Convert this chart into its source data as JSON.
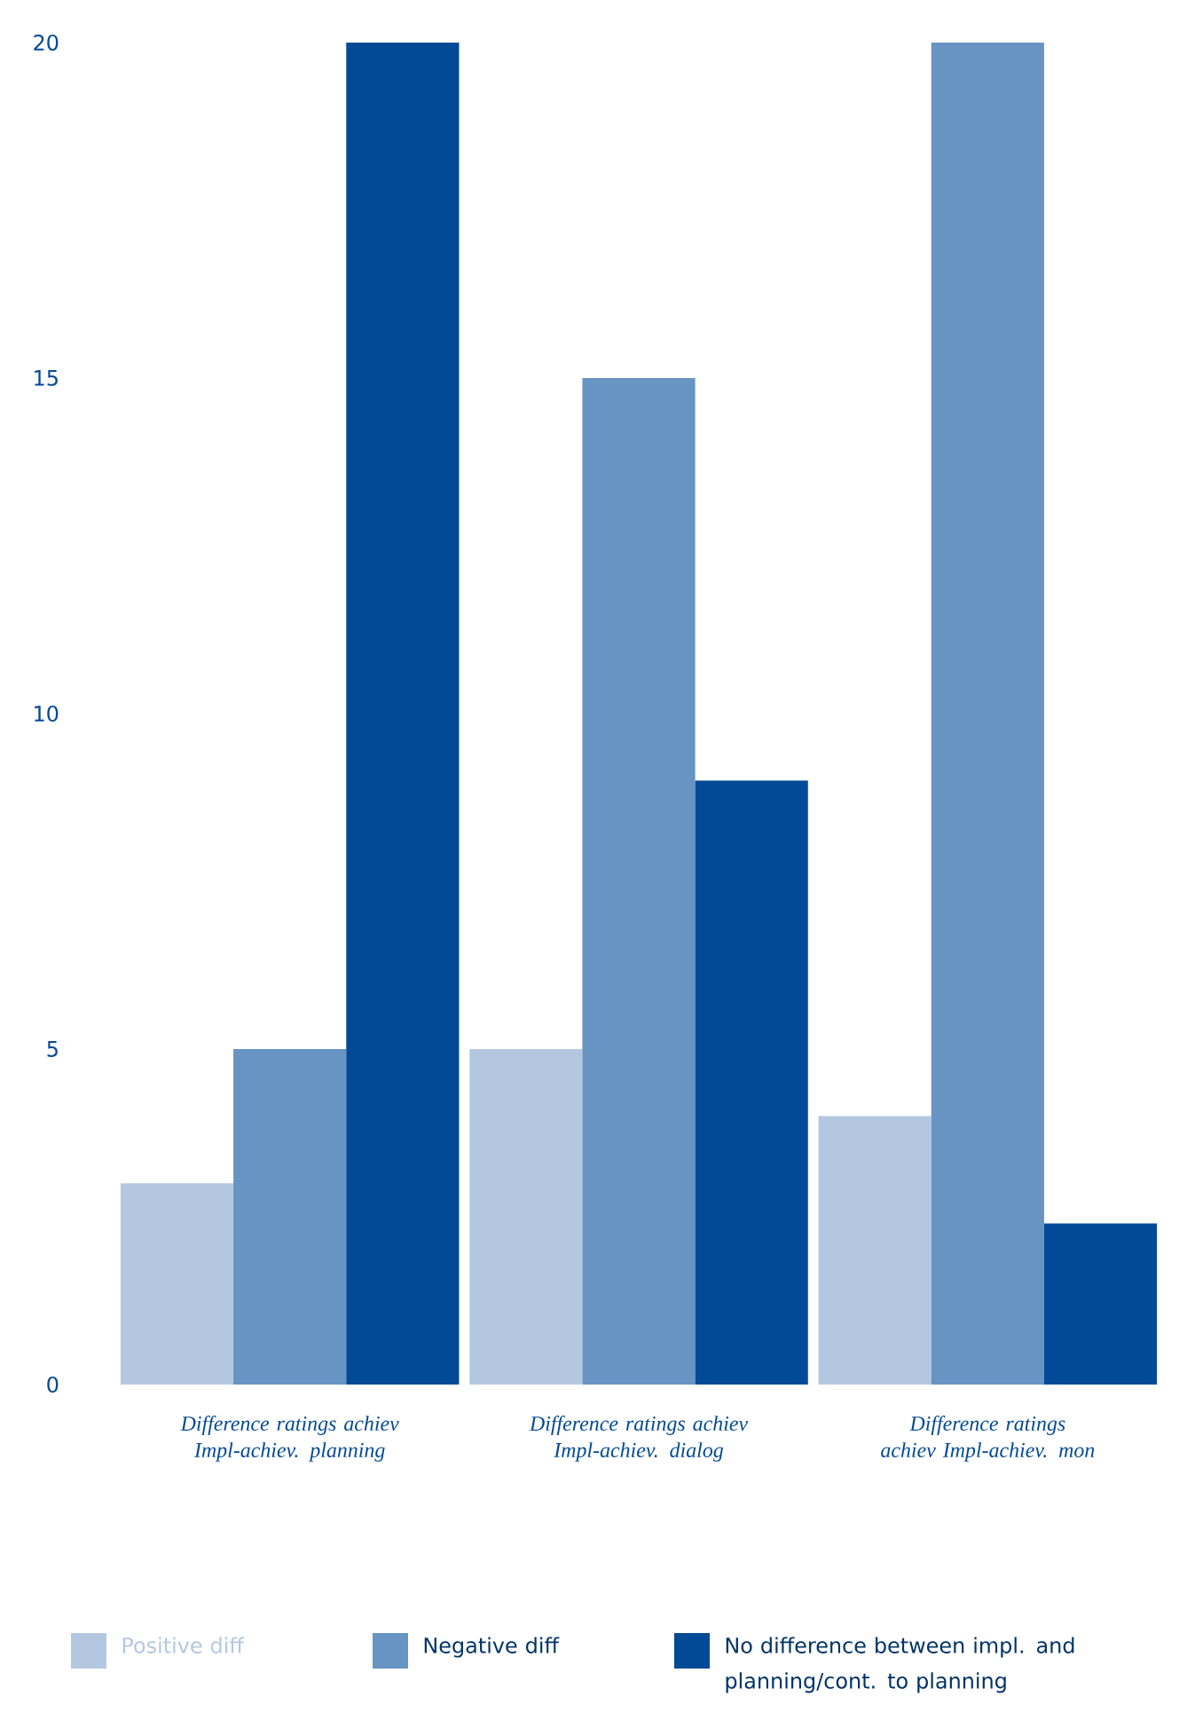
{
  "chart_data": {
    "type": "bar",
    "categories": [
      "Difference ratings achiev Impl-achiev. planning",
      "Difference ratings achiev Impl-achiev. dialog",
      "Difference ratings achiev Impl-achiev. mon"
    ],
    "series": [
      {
        "name": "Positive diff",
        "color": "#b3c8e0",
        "values": [
          3,
          5,
          4
        ]
      },
      {
        "name": "Negative diff",
        "color": "#6794c3",
        "values": [
          5,
          15,
          20
        ]
      },
      {
        "name": "No difference between impl. and planning/cont. to planning",
        "color": "#034a96",
        "values": [
          20,
          9,
          2.4
        ]
      }
    ],
    "ylim": [
      0,
      20
    ],
    "yticks": [
      0,
      5,
      10,
      15,
      20
    ],
    "grid": false,
    "legend": "bottom"
  }
}
